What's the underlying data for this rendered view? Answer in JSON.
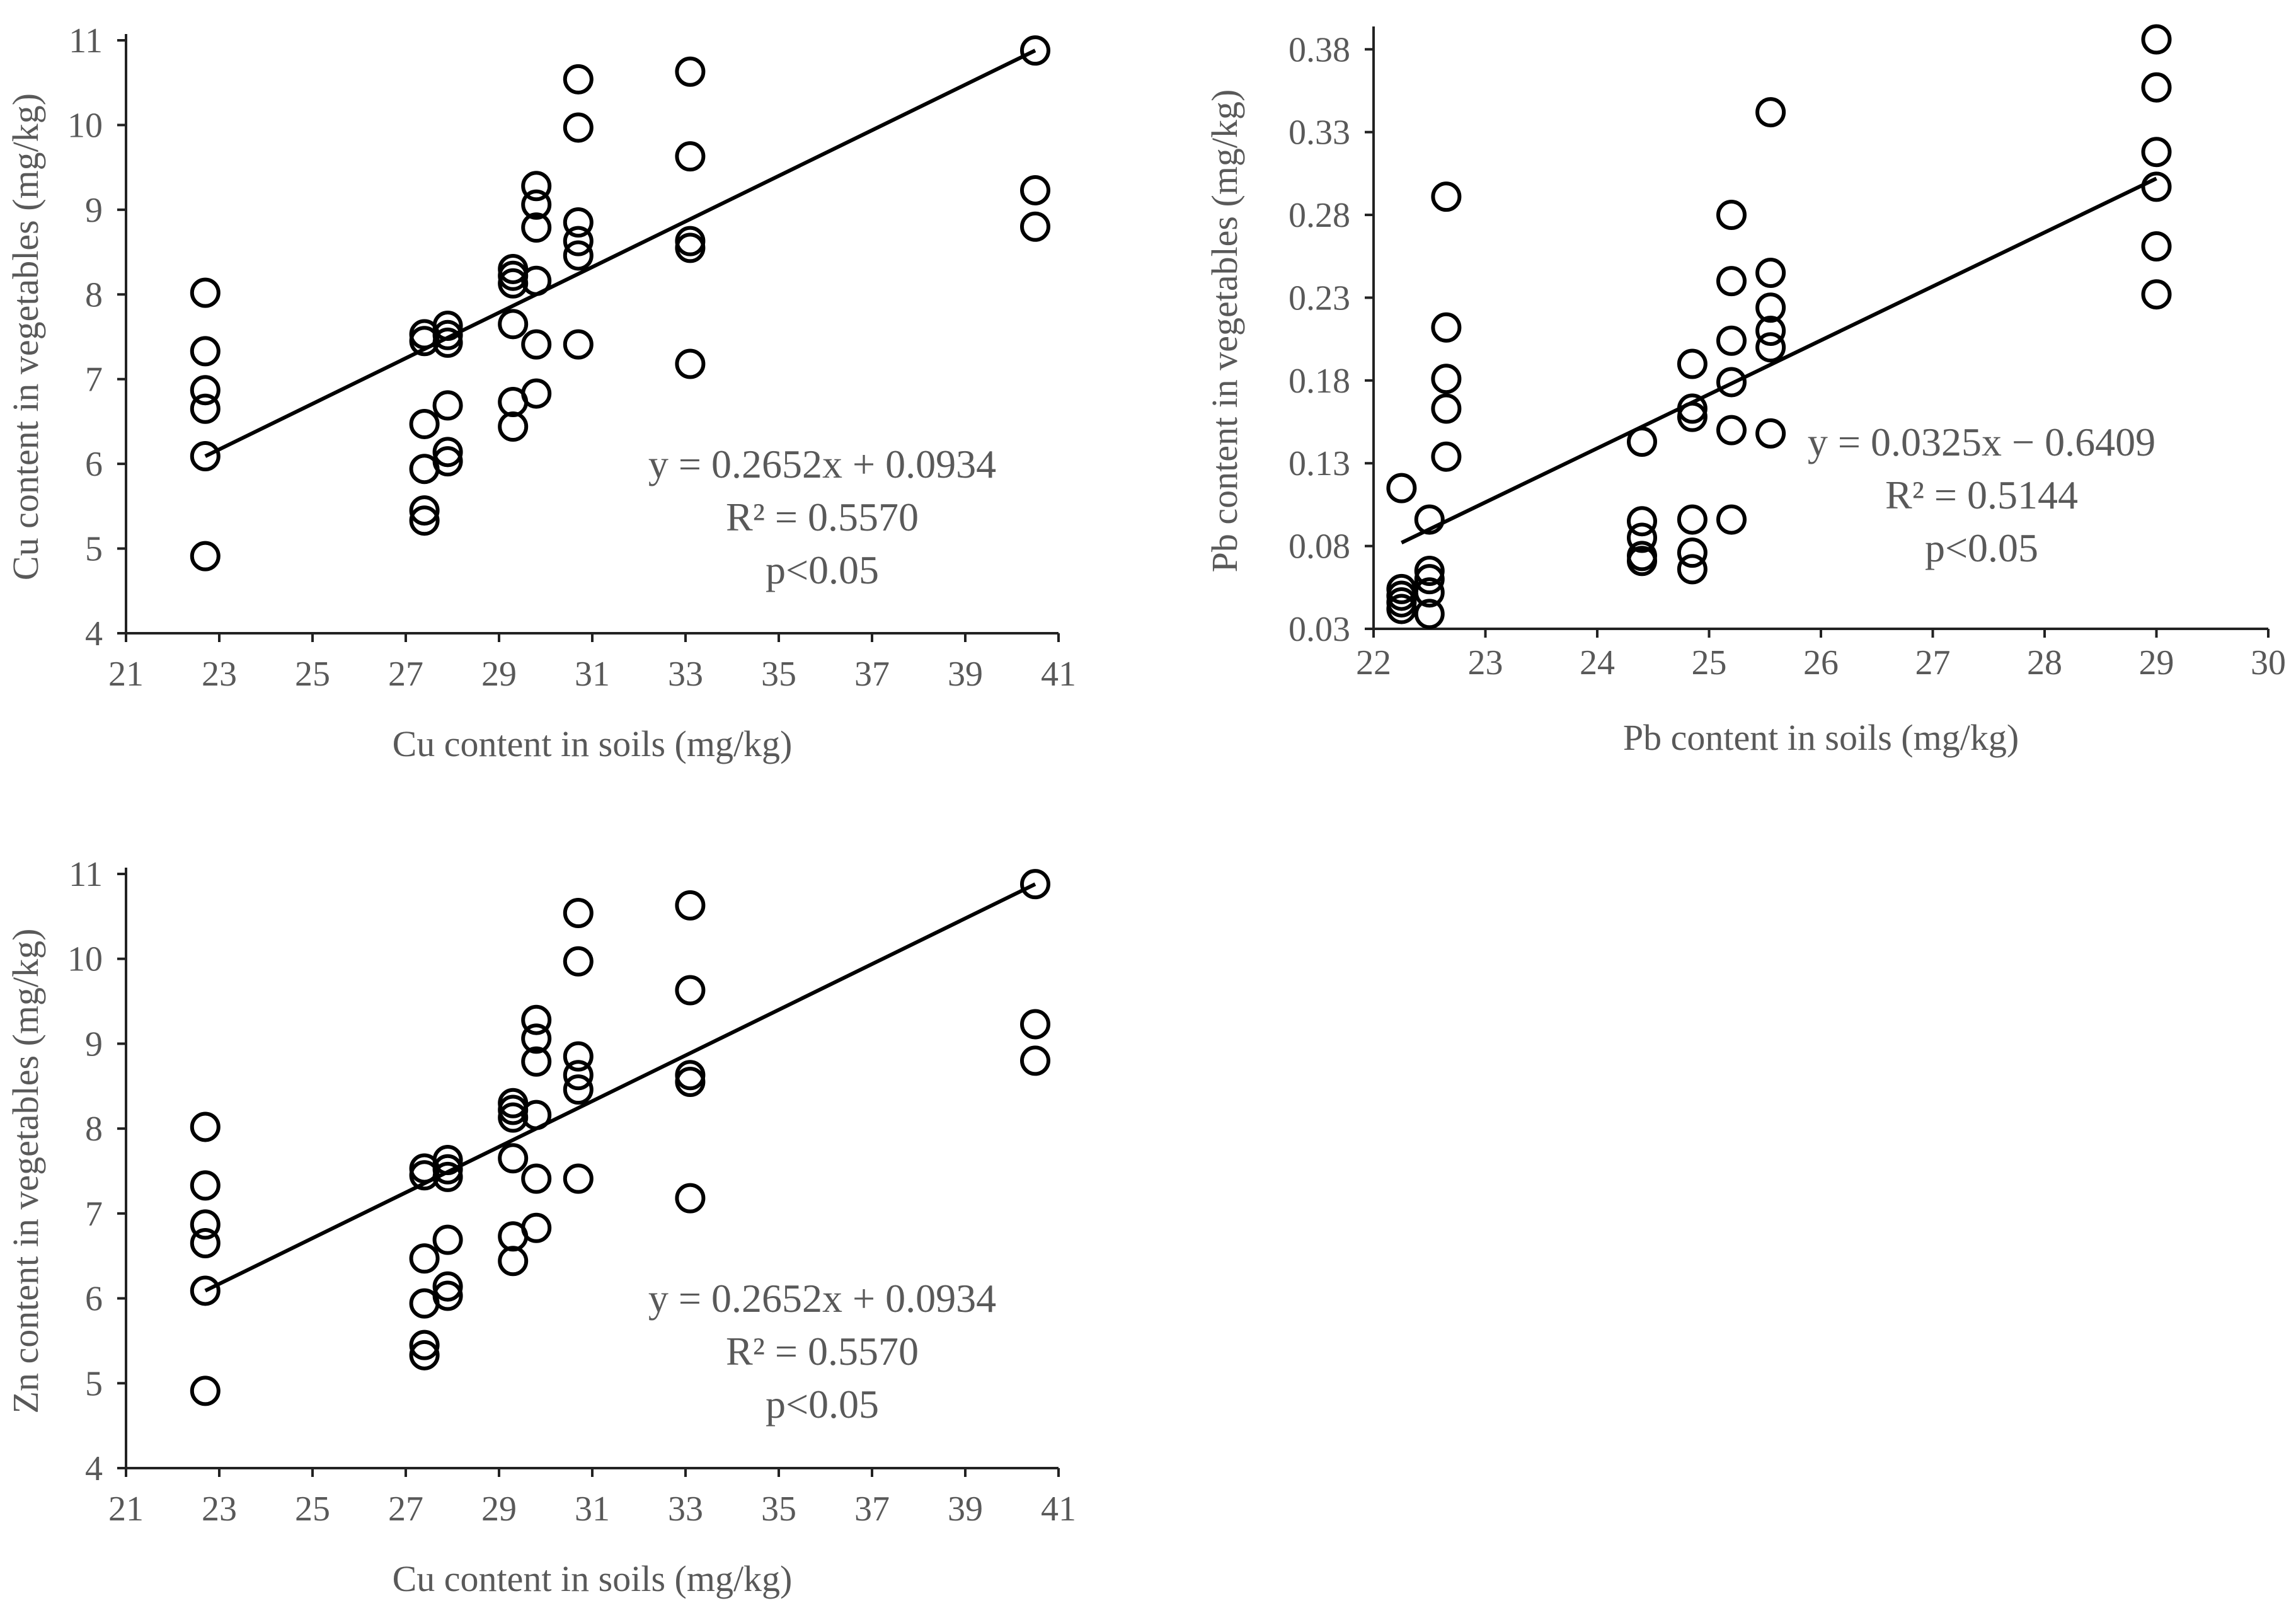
{
  "chart_data": [
    {
      "type": "scatter",
      "xlabel": "Cu content in soils (mg/kg)",
      "ylabel": "Cu content in vegetables (mg/kg)",
      "xlim": [
        21,
        41
      ],
      "ylim": [
        4,
        11
      ],
      "xticks": [
        21,
        23,
        25,
        27,
        29,
        31,
        33,
        35,
        37,
        39,
        41
      ],
      "yticks": [
        4,
        5,
        6,
        7,
        8,
        9,
        10,
        11
      ],
      "trendline": {
        "slope": 0.2652,
        "intercept": 0.0934,
        "x_range": [
          22.7,
          40.5
        ]
      },
      "annotation": [
        "y = 0.2652x + 0.0934",
        "R² = 0.5570",
        "p<0.05"
      ],
      "points": [
        [
          22.7,
          8.02
        ],
        [
          22.7,
          7.33
        ],
        [
          22.7,
          6.87
        ],
        [
          22.7,
          6.65
        ],
        [
          22.7,
          6.09
        ],
        [
          22.7,
          4.91
        ],
        [
          27.4,
          7.53
        ],
        [
          27.4,
          7.45
        ],
        [
          27.4,
          6.47
        ],
        [
          27.4,
          5.94
        ],
        [
          27.4,
          5.45
        ],
        [
          27.4,
          5.33
        ],
        [
          27.9,
          7.63
        ],
        [
          27.9,
          7.52
        ],
        [
          27.9,
          7.43
        ],
        [
          27.9,
          6.69
        ],
        [
          27.9,
          6.14
        ],
        [
          27.9,
          6.03
        ],
        [
          29.3,
          8.3
        ],
        [
          29.3,
          8.22
        ],
        [
          29.3,
          8.13
        ],
        [
          29.3,
          7.65
        ],
        [
          29.3,
          6.73
        ],
        [
          29.3,
          6.44
        ],
        [
          29.8,
          9.28
        ],
        [
          29.8,
          9.06
        ],
        [
          29.8,
          8.79
        ],
        [
          29.8,
          8.16
        ],
        [
          29.8,
          7.41
        ],
        [
          29.8,
          6.83
        ],
        [
          30.7,
          10.54
        ],
        [
          30.7,
          9.97
        ],
        [
          30.7,
          8.85
        ],
        [
          30.7,
          8.63
        ],
        [
          30.7,
          8.46
        ],
        [
          30.7,
          7.41
        ],
        [
          33.1,
          10.63
        ],
        [
          33.1,
          9.63
        ],
        [
          33.1,
          8.63
        ],
        [
          33.1,
          8.55
        ],
        [
          33.1,
          7.18
        ],
        [
          40.5,
          10.88
        ],
        [
          40.5,
          9.23
        ],
        [
          40.5,
          8.8
        ]
      ]
    },
    {
      "type": "scatter",
      "xlabel": "Pb content in soils (mg/kg)",
      "ylabel": "Pb content in vegetables (mg/kg)",
      "xlim": [
        22,
        30
      ],
      "ylim": [
        0.03,
        0.39
      ],
      "xticks": [
        22,
        23,
        24,
        25,
        26,
        27,
        28,
        29,
        30
      ],
      "yticks": [
        0.03,
        0.08,
        0.13,
        0.18,
        0.23,
        0.28,
        0.33,
        0.38
      ],
      "trendline": {
        "slope": 0.0325,
        "intercept": -0.6409,
        "x_range": [
          22.25,
          29.0
        ]
      },
      "annotation": [
        "y = 0.0325x − 0.6409",
        "R² = 0.5144",
        "p<0.05"
      ],
      "points": [
        [
          22.25,
          0.115
        ],
        [
          22.25,
          0.054
        ],
        [
          22.25,
          0.05
        ],
        [
          22.25,
          0.046
        ],
        [
          22.25,
          0.042
        ],
        [
          22.5,
          0.096
        ],
        [
          22.5,
          0.065
        ],
        [
          22.5,
          0.06
        ],
        [
          22.5,
          0.052
        ],
        [
          22.5,
          0.039
        ],
        [
          22.65,
          0.291
        ],
        [
          22.65,
          0.212
        ],
        [
          22.65,
          0.181
        ],
        [
          22.65,
          0.163
        ],
        [
          22.65,
          0.134
        ],
        [
          24.4,
          0.143
        ],
        [
          24.4,
          0.095
        ],
        [
          24.4,
          0.085
        ],
        [
          24.4,
          0.074
        ],
        [
          24.4,
          0.071
        ],
        [
          24.85,
          0.19
        ],
        [
          24.85,
          0.163
        ],
        [
          24.85,
          0.158
        ],
        [
          24.85,
          0.096
        ],
        [
          24.85,
          0.076
        ],
        [
          24.85,
          0.066
        ],
        [
          25.2,
          0.28
        ],
        [
          25.2,
          0.24
        ],
        [
          25.2,
          0.204
        ],
        [
          25.2,
          0.179
        ],
        [
          25.2,
          0.15
        ],
        [
          25.2,
          0.096
        ],
        [
          25.55,
          0.342
        ],
        [
          25.55,
          0.245
        ],
        [
          25.55,
          0.224
        ],
        [
          25.55,
          0.21
        ],
        [
          25.55,
          0.2
        ],
        [
          25.55,
          0.148
        ],
        [
          29.0,
          0.386
        ],
        [
          29.0,
          0.357
        ],
        [
          29.0,
          0.318
        ],
        [
          29.0,
          0.297
        ],
        [
          29.0,
          0.261
        ],
        [
          29.0,
          0.232
        ]
      ]
    },
    {
      "type": "scatter",
      "xlabel": "Cu content in soils (mg/kg)",
      "ylabel": "Zn content in vegetables (mg/kg)",
      "xlim": [
        21,
        41
      ],
      "ylim": [
        4,
        11
      ],
      "xticks": [
        21,
        23,
        25,
        27,
        29,
        31,
        33,
        35,
        37,
        39,
        41
      ],
      "yticks": [
        4,
        5,
        6,
        7,
        8,
        9,
        10,
        11
      ],
      "trendline": {
        "slope": 0.2652,
        "intercept": 0.0934,
        "x_range": [
          22.7,
          40.5
        ]
      },
      "annotation": [
        "y = 0.2652x + 0.0934",
        "R² = 0.5570",
        "p<0.05"
      ],
      "points": [
        [
          22.7,
          8.02
        ],
        [
          22.7,
          7.33
        ],
        [
          22.7,
          6.87
        ],
        [
          22.7,
          6.65
        ],
        [
          22.7,
          6.09
        ],
        [
          22.7,
          4.91
        ],
        [
          27.4,
          7.53
        ],
        [
          27.4,
          7.45
        ],
        [
          27.4,
          6.47
        ],
        [
          27.4,
          5.94
        ],
        [
          27.4,
          5.45
        ],
        [
          27.4,
          5.33
        ],
        [
          27.9,
          7.63
        ],
        [
          27.9,
          7.52
        ],
        [
          27.9,
          7.43
        ],
        [
          27.9,
          6.69
        ],
        [
          27.9,
          6.14
        ],
        [
          27.9,
          6.03
        ],
        [
          29.3,
          8.3
        ],
        [
          29.3,
          8.22
        ],
        [
          29.3,
          8.13
        ],
        [
          29.3,
          7.65
        ],
        [
          29.3,
          6.73
        ],
        [
          29.3,
          6.44
        ],
        [
          29.8,
          9.28
        ],
        [
          29.8,
          9.06
        ],
        [
          29.8,
          8.79
        ],
        [
          29.8,
          8.16
        ],
        [
          29.8,
          7.41
        ],
        [
          29.8,
          6.83
        ],
        [
          30.7,
          10.54
        ],
        [
          30.7,
          9.97
        ],
        [
          30.7,
          8.85
        ],
        [
          30.7,
          8.63
        ],
        [
          30.7,
          8.46
        ],
        [
          30.7,
          7.41
        ],
        [
          33.1,
          10.63
        ],
        [
          33.1,
          9.63
        ],
        [
          33.1,
          8.63
        ],
        [
          33.1,
          8.55
        ],
        [
          33.1,
          7.18
        ],
        [
          40.5,
          10.88
        ],
        [
          40.5,
          9.23
        ],
        [
          40.5,
          8.8
        ]
      ]
    }
  ]
}
